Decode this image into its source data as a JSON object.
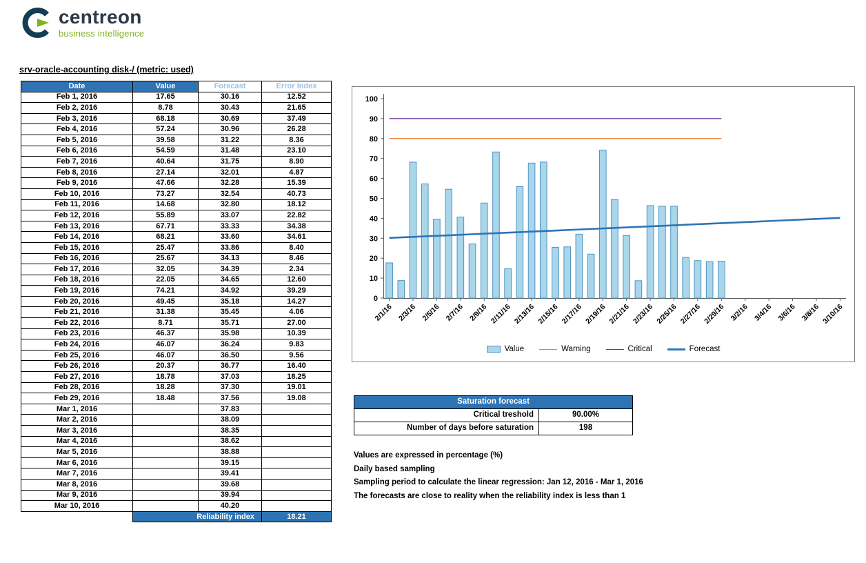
{
  "logo": {
    "brand": "centreon",
    "tagline": "business intelligence"
  },
  "page_title": "srv-oracle-accounting disk-/ (metric: used)",
  "table": {
    "headers": [
      "Date",
      "Value",
      "Forecast",
      "Error Index"
    ],
    "rows": [
      [
        "Feb 1, 2016",
        "17.65",
        "30.16",
        "12.52"
      ],
      [
        "Feb 2, 2016",
        "8.78",
        "30.43",
        "21.65"
      ],
      [
        "Feb 3, 2016",
        "68.18",
        "30.69",
        "37.49"
      ],
      [
        "Feb 4, 2016",
        "57.24",
        "30.96",
        "26.28"
      ],
      [
        "Feb 5, 2016",
        "39.58",
        "31.22",
        "8.36"
      ],
      [
        "Feb 6, 2016",
        "54.59",
        "31.48",
        "23.10"
      ],
      [
        "Feb 7, 2016",
        "40.64",
        "31.75",
        "8.90"
      ],
      [
        "Feb 8, 2016",
        "27.14",
        "32.01",
        "4.87"
      ],
      [
        "Feb 9, 2016",
        "47.66",
        "32.28",
        "15.39"
      ],
      [
        "Feb 10, 2016",
        "73.27",
        "32.54",
        "40.73"
      ],
      [
        "Feb 11, 2016",
        "14.68",
        "32.80",
        "18.12"
      ],
      [
        "Feb 12, 2016",
        "55.89",
        "33.07",
        "22.82"
      ],
      [
        "Feb 13, 2016",
        "67.71",
        "33.33",
        "34.38"
      ],
      [
        "Feb 14, 2016",
        "68.21",
        "33.60",
        "34.61"
      ],
      [
        "Feb 15, 2016",
        "25.47",
        "33.86",
        "8.40"
      ],
      [
        "Feb 16, 2016",
        "25.67",
        "34.13",
        "8.46"
      ],
      [
        "Feb 17, 2016",
        "32.05",
        "34.39",
        "2.34"
      ],
      [
        "Feb 18, 2016",
        "22.05",
        "34.65",
        "12.60"
      ],
      [
        "Feb 19, 2016",
        "74.21",
        "34.92",
        "39.29"
      ],
      [
        "Feb 20, 2016",
        "49.45",
        "35.18",
        "14.27"
      ],
      [
        "Feb 21, 2016",
        "31.38",
        "35.45",
        "4.06"
      ],
      [
        "Feb 22, 2016",
        "8.71",
        "35.71",
        "27.00"
      ],
      [
        "Feb 23, 2016",
        "46.37",
        "35.98",
        "10.39"
      ],
      [
        "Feb 24, 2016",
        "46.07",
        "36.24",
        "9.83"
      ],
      [
        "Feb 25, 2016",
        "46.07",
        "36.50",
        "9.56"
      ],
      [
        "Feb 26, 2016",
        "20.37",
        "36.77",
        "16.40"
      ],
      [
        "Feb 27, 2016",
        "18.78",
        "37.03",
        "18.25"
      ],
      [
        "Feb 28, 2016",
        "18.28",
        "37.30",
        "19.01"
      ],
      [
        "Feb 29, 2016",
        "18.48",
        "37.56",
        "19.08"
      ],
      [
        "Mar 1, 2016",
        "",
        "37.83",
        ""
      ],
      [
        "Mar 2, 2016",
        "",
        "38.09",
        ""
      ],
      [
        "Mar 3, 2016",
        "",
        "38.35",
        ""
      ],
      [
        "Mar 4, 2016",
        "",
        "38.62",
        ""
      ],
      [
        "Mar 5, 2016",
        "",
        "38.88",
        ""
      ],
      [
        "Mar 6, 2016",
        "",
        "39.15",
        ""
      ],
      [
        "Mar 7, 2016",
        "",
        "39.41",
        ""
      ],
      [
        "Mar 8, 2016",
        "",
        "39.68",
        ""
      ],
      [
        "Mar 9, 2016",
        "",
        "39.94",
        ""
      ],
      [
        "Mar 10, 2016",
        "",
        "40.20",
        ""
      ]
    ],
    "footer": {
      "label": "Reliability index",
      "value": "18.21"
    }
  },
  "chart_data": {
    "type": "bar",
    "title": "",
    "xlabel": "",
    "ylabel": "",
    "ylim": [
      0,
      100
    ],
    "ytick_step": 10,
    "days": 39,
    "grid": false,
    "legend_position": "bottom",
    "x_tick_labels": [
      "2/1/16",
      "2/3/16",
      "2/5/16",
      "2/7/16",
      "2/9/16",
      "2/11/16",
      "2/13/16",
      "2/15/16",
      "2/17/16",
      "2/19/16",
      "2/21/16",
      "2/23/16",
      "2/25/16",
      "2/27/16",
      "2/29/16",
      "3/2/16",
      "3/4/16",
      "3/6/16",
      "3/8/16",
      "3/10/16"
    ],
    "series": [
      {
        "name": "Value",
        "type": "bar",
        "fill": "#A9D6EB",
        "stroke": "#4D94BF",
        "values": [
          17.65,
          8.78,
          68.18,
          57.24,
          39.58,
          54.59,
          40.64,
          27.14,
          47.66,
          73.27,
          14.68,
          55.89,
          67.71,
          68.21,
          25.47,
          25.67,
          32.05,
          22.05,
          74.21,
          49.45,
          31.38,
          8.71,
          46.37,
          46.07,
          46.07,
          20.37,
          18.78,
          18.28,
          18.48
        ]
      },
      {
        "name": "Warning",
        "type": "hline",
        "color": "#ED7D31",
        "value": 80,
        "start_day": 0,
        "end_day": 28
      },
      {
        "name": "Critical",
        "type": "hline",
        "color": "#7030A0",
        "value": 90,
        "start_day": 0,
        "end_day": 28
      },
      {
        "name": "Forecast",
        "type": "line",
        "color": "#2E74B5",
        "width": 2.6,
        "values": [
          30.16,
          30.43,
          30.69,
          30.96,
          31.22,
          31.48,
          31.75,
          32.01,
          32.28,
          32.54,
          32.8,
          33.07,
          33.33,
          33.6,
          33.86,
          34.13,
          34.39,
          34.65,
          34.92,
          35.18,
          35.45,
          35.71,
          35.98,
          36.24,
          36.5,
          36.77,
          37.03,
          37.3,
          37.56,
          37.83,
          38.09,
          38.35,
          38.62,
          38.88,
          39.15,
          39.41,
          39.68,
          39.94,
          40.2
        ]
      }
    ]
  },
  "saturation": {
    "title": "Saturation forecast",
    "rows": [
      {
        "label": "Critical treshold",
        "value": "90.00%"
      },
      {
        "label": "Number of days before saturation",
        "value": "198"
      }
    ]
  },
  "notes": [
    "Values are expressed in percentage (%)",
    "Daily based sampling",
    "Sampling period to calculate the linear regression: Jan 12, 2016 - Mar 1, 2016",
    "The forecasts are close to reality when the reliability index is less than 1"
  ]
}
